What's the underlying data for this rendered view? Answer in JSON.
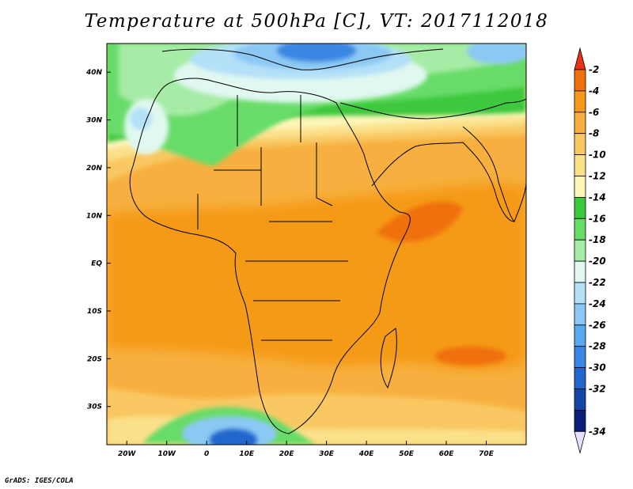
{
  "title": "Temperature at 500hPa [C], VT: 2017112018",
  "credit": "GrADS: IGES/COLA",
  "map": {
    "projection": "lat-lon",
    "lon_range": [
      -25,
      80
    ],
    "lat_range": [
      -38,
      46
    ],
    "lon_ticks": [
      {
        "value": -20,
        "label": "20W"
      },
      {
        "value": -10,
        "label": "10W"
      },
      {
        "value": 0,
        "label": "0"
      },
      {
        "value": 10,
        "label": "10E"
      },
      {
        "value": 20,
        "label": "20E"
      },
      {
        "value": 30,
        "label": "30E"
      },
      {
        "value": 40,
        "label": "40E"
      },
      {
        "value": 50,
        "label": "50E"
      },
      {
        "value": 60,
        "label": "60E"
      },
      {
        "value": 70,
        "label": "70E"
      }
    ],
    "lat_ticks": [
      {
        "value": 40,
        "label": "40N"
      },
      {
        "value": 30,
        "label": "30N"
      },
      {
        "value": 20,
        "label": "20N"
      },
      {
        "value": 10,
        "label": "10N"
      },
      {
        "value": 0,
        "label": "EQ"
      },
      {
        "value": -10,
        "label": "10S"
      },
      {
        "value": -20,
        "label": "20S"
      },
      {
        "value": -30,
        "label": "30S"
      }
    ]
  },
  "colorbar": {
    "levels": [
      {
        "label": "-2",
        "color": "#f07010"
      },
      {
        "label": "-4",
        "color": "#f59a18"
      },
      {
        "label": "-6",
        "color": "#f7b040"
      },
      {
        "label": "-8",
        "color": "#f9c862"
      },
      {
        "label": "-10",
        "color": "#fbe08a"
      },
      {
        "label": "-12",
        "color": "#fdf5b8"
      },
      {
        "label": "-14",
        "color": "#3cc83c"
      },
      {
        "label": "-16",
        "color": "#68dc68"
      },
      {
        "label": "-18",
        "color": "#a6eca6"
      },
      {
        "label": "-20",
        "color": "#e0f8f0"
      },
      {
        "label": "-22",
        "color": "#b4e0f8"
      },
      {
        "label": "-24",
        "color": "#8cc8f4"
      },
      {
        "label": "-26",
        "color": "#5aa8ee"
      },
      {
        "label": "-28",
        "color": "#3a86e2"
      },
      {
        "label": "-30",
        "color": "#2266cc"
      },
      {
        "label": "-32",
        "color": "#1446a8"
      },
      {
        "label": "-34",
        "color": "#0a1e78"
      }
    ],
    "top_color": "#e83214",
    "bottom_color": "#e8e0ff"
  }
}
